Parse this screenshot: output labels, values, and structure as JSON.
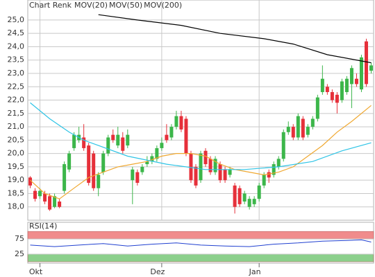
{
  "chart_data": [
    {
      "type": "candlestick",
      "name": "Chart Renk",
      "name_color": "#8c8c8c",
      "up_color": "#3cb64a",
      "down_color": "#e6303a",
      "categories": [
        null,
        null,
        "Okt",
        null,
        null,
        null,
        null,
        null,
        null,
        null,
        null,
        null,
        null,
        null,
        null,
        null,
        null,
        null,
        null,
        null,
        null,
        null,
        null,
        null,
        null,
        null,
        null,
        "Dez",
        null,
        null,
        null,
        null,
        null,
        null,
        null,
        null,
        null,
        null,
        null,
        null,
        null,
        null,
        null,
        null,
        null,
        null,
        null,
        "Jan",
        null,
        null,
        null,
        null,
        null,
        null,
        null,
        null,
        null,
        null,
        null,
        null,
        null,
        null,
        null,
        null,
        null,
        null,
        null,
        null,
        null,
        null,
        null
      ],
      "open": [
        19.1,
        18.6,
        18.4,
        18.5,
        18.4,
        18.0,
        18.2,
        18.6,
        19.4,
        20.2,
        20.5,
        20.6,
        20.3,
        20.0,
        18.7,
        19.3,
        20.0,
        20.7,
        20.3,
        20.6,
        20.3,
        19.0,
        19.3,
        19.3,
        19.6,
        19.7,
        19.8,
        20.2,
        20.7,
        20.6,
        21.0,
        21.4,
        21.3,
        20.0,
        19.5,
        19.0,
        20.1,
        19.8,
        19.3,
        19.6,
        19.4,
        19.2,
        18.8,
        18.7,
        18.2,
        18.0,
        18.1,
        18.3,
        18.8,
        19.3,
        19.2,
        19.5,
        19.8,
        20.8,
        21.0,
        20.6,
        21.3,
        20.7,
        21.0,
        21.3,
        22.3,
        22.5,
        22.3,
        22.2,
        22.0,
        22.3,
        22.6,
        22.8,
        22.4,
        24.2,
        23.1
      ],
      "high": [
        19.15,
        18.7,
        18.7,
        18.6,
        18.5,
        18.5,
        18.3,
        19.7,
        20.1,
        20.8,
        21.0,
        21.1,
        20.4,
        20.1,
        19.3,
        20.1,
        20.7,
        20.9,
        21.0,
        20.8,
        20.9,
        19.5,
        19.4,
        19.6,
        19.9,
        20.0,
        20.3,
        20.6,
        21.1,
        21.1,
        21.6,
        21.6,
        21.4,
        20.1,
        19.6,
        20.1,
        20.2,
        19.9,
        19.9,
        19.7,
        19.5,
        19.5,
        18.9,
        18.8,
        18.6,
        18.4,
        18.4,
        18.9,
        19.3,
        19.4,
        19.7,
        19.9,
        20.9,
        21.2,
        21.1,
        21.5,
        21.4,
        21.1,
        21.4,
        22.2,
        23.3,
        22.6,
        22.4,
        22.3,
        22.8,
        22.9,
        23.3,
        23.0,
        23.7,
        24.3,
        23.4
      ],
      "low": [
        18.7,
        18.2,
        18.3,
        18.1,
        17.85,
        17.95,
        17.95,
        18.5,
        19.3,
        20.1,
        20.4,
        20.1,
        18.8,
        18.6,
        18.4,
        19.2,
        19.9,
        20.4,
        20.2,
        20.0,
        20.2,
        18.1,
        18.8,
        19.2,
        19.5,
        19.6,
        19.7,
        20.1,
        20.4,
        20.5,
        20.9,
        20.8,
        19.9,
        18.9,
        18.7,
        18.9,
        19.5,
        19.2,
        19.2,
        18.9,
        18.9,
        19.1,
        17.75,
        18.0,
        18.1,
        17.9,
        18.0,
        18.2,
        18.7,
        18.9,
        19.1,
        19.4,
        19.7,
        20.7,
        20.5,
        20.5,
        20.5,
        20.6,
        20.9,
        21.2,
        22.2,
        22.2,
        21.9,
        21.5,
        21.9,
        22.2,
        21.7,
        22.5,
        22.3,
        22.5,
        23.0
      ],
      "close": [
        18.8,
        18.3,
        18.6,
        18.2,
        17.9,
        18.4,
        18.0,
        19.6,
        20.0,
        20.7,
        20.7,
        20.2,
        18.9,
        18.7,
        19.2,
        20.0,
        20.6,
        20.5,
        20.7,
        20.1,
        20.7,
        19.4,
        18.9,
        19.5,
        19.7,
        19.9,
        20.2,
        20.4,
        20.5,
        21.0,
        21.4,
        20.9,
        20.0,
        19.0,
        18.8,
        20.0,
        19.6,
        19.3,
        19.8,
        19.0,
        19.0,
        19.4,
        18.0,
        18.1,
        18.5,
        18.3,
        18.3,
        18.8,
        19.2,
        19.1,
        19.6,
        19.8,
        20.8,
        21.0,
        20.6,
        21.4,
        20.6,
        21.0,
        21.3,
        22.1,
        22.8,
        22.3,
        22.0,
        21.9,
        22.7,
        22.8,
        23.2,
        22.6,
        23.6,
        22.6,
        23.3
      ],
      "ylim": [
        17.5,
        25.75
      ],
      "yticks": [
        {
          "value": 18,
          "label": "18,0"
        },
        {
          "value": 18.5,
          "label": "18,5"
        },
        {
          "value": 19,
          "label": "19,0"
        },
        {
          "value": 19.5,
          "label": "19,5"
        },
        {
          "value": 20,
          "label": "20,0"
        },
        {
          "value": 20.5,
          "label": "20,5"
        },
        {
          "value": 21,
          "label": "21,0"
        },
        {
          "value": 21.5,
          "label": "21,5"
        },
        {
          "value": 22,
          "label": "22,0"
        },
        {
          "value": 22.5,
          "label": "22,5"
        },
        {
          "value": 23,
          "label": "23,0"
        },
        {
          "value": 23.5,
          "label": "23,5"
        },
        {
          "value": 24,
          "label": "24,0"
        },
        {
          "value": 24.5,
          "label": "24,5"
        },
        {
          "value": 25,
          "label": "25,0"
        }
      ],
      "grid": true,
      "lines": [
        {
          "name": "MOV(20)",
          "color": "#f0a830",
          "x": [
            0,
            3,
            6,
            9,
            12,
            15,
            18,
            21,
            24,
            27,
            30,
            33,
            36,
            39,
            42,
            45,
            48,
            51,
            54,
            57,
            60,
            63,
            66,
            70
          ],
          "values": [
            19.0,
            18.5,
            18.3,
            18.7,
            19.1,
            19.3,
            19.5,
            19.6,
            19.7,
            19.9,
            20.0,
            20.0,
            19.9,
            19.6,
            19.4,
            19.3,
            19.2,
            19.3,
            19.5,
            19.9,
            20.3,
            20.8,
            21.2,
            21.8
          ]
        },
        {
          "name": "MOV(50)",
          "color": "#2ec4e6",
          "x": [
            0,
            4,
            8,
            11,
            14,
            20,
            28,
            36,
            44,
            51,
            58,
            64,
            70
          ],
          "values": [
            21.9,
            21.3,
            20.8,
            20.5,
            20.3,
            19.9,
            19.6,
            19.4,
            19.4,
            19.5,
            19.7,
            20.1,
            20.4
          ]
        },
        {
          "name": "MOV(200)",
          "color": "#000000",
          "x": [
            14,
            22,
            31,
            39,
            48,
            54,
            61,
            70
          ],
          "values": [
            25.2,
            25.0,
            24.8,
            24.5,
            24.3,
            24.1,
            23.7,
            23.4
          ]
        }
      ]
    },
    {
      "type": "line",
      "title": "RSI(14)",
      "ylim": [
        0,
        130
      ],
      "yticks": [
        25,
        75
      ],
      "bands": [
        {
          "from": 75,
          "to": 100,
          "color": "#f08c8c"
        },
        {
          "from": 0,
          "to": 25,
          "color": "#8cd08c"
        }
      ],
      "series": [
        {
          "color": "#1f3fd0",
          "x": [
            0,
            5,
            10,
            15,
            20,
            25,
            30,
            35,
            40,
            45,
            50,
            55,
            60,
            65,
            68,
            70
          ],
          "values": [
            55,
            50,
            55,
            60,
            52,
            58,
            62,
            55,
            52,
            50,
            58,
            62,
            68,
            70,
            72,
            65
          ]
        }
      ]
    }
  ]
}
